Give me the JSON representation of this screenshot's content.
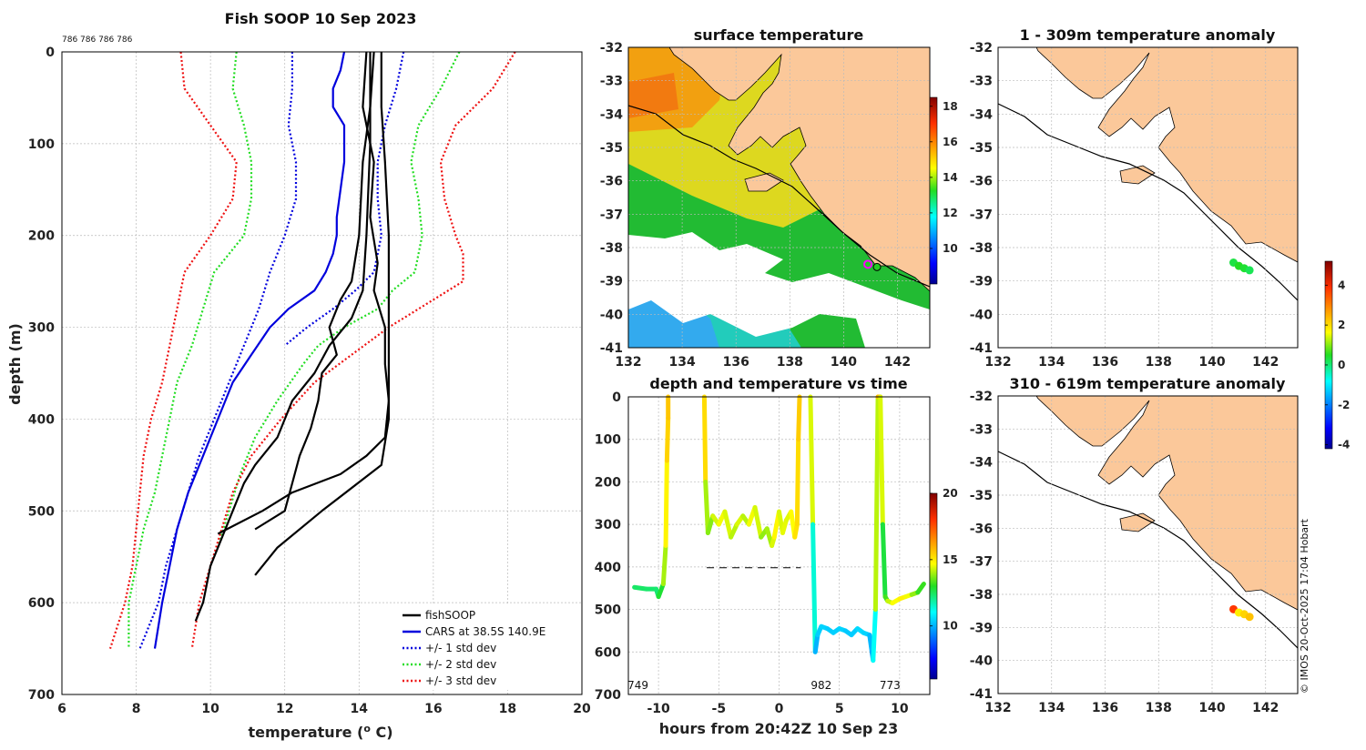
{
  "title": "Fish SOOP 10 Sep 2023",
  "profile_ids_label": "786 786 786 786",
  "copyright": "© IMOS 20-Oct-2025 17:04 Hobart",
  "chart_data": [
    {
      "id": "profile",
      "type": "line",
      "title": "Fish SOOP 10 Sep 2023",
      "xlabel": "temperature (",
      "xlabel_sup": "o",
      "xlabel_end": " C)",
      "ylabel": "depth (m)",
      "xlim": [
        6,
        20
      ],
      "ylim": [
        700,
        0
      ],
      "xticks": [
        6,
        8,
        10,
        12,
        14,
        16,
        18,
        20
      ],
      "yticks": [
        0,
        100,
        200,
        300,
        400,
        500,
        600,
        700
      ],
      "legend": {
        "placement": "bottom-right",
        "entries": [
          "fishSOOP",
          "CARS at 38.5S 140.9E",
          "+/- 1 std dev",
          "+/- 2 std dev",
          "+/- 3 std dev"
        ]
      },
      "series": [
        {
          "name": "CARS at 38.5S 140.9E",
          "color": "#0000dd",
          "style": "solid",
          "depth": [
            0,
            20,
            40,
            60,
            80,
            100,
            120,
            150,
            180,
            200,
            220,
            240,
            260,
            280,
            300,
            330,
            360,
            400,
            440,
            480,
            520,
            560,
            600,
            650
          ],
          "temp": [
            13.6,
            13.5,
            13.3,
            13.3,
            13.6,
            13.6,
            13.6,
            13.5,
            13.4,
            13.4,
            13.3,
            13.1,
            12.8,
            12.1,
            11.6,
            11.1,
            10.6,
            10.2,
            9.8,
            9.4,
            9.1,
            8.9,
            8.7,
            8.5
          ]
        },
        {
          "name": "-1 std dev",
          "color": "#0000dd",
          "style": "dotted",
          "depth": [
            0,
            40,
            80,
            120,
            160,
            200,
            240,
            280,
            320,
            360,
            400,
            440,
            480,
            520,
            560,
            600,
            650
          ],
          "temp": [
            12.2,
            12.2,
            12.1,
            12.3,
            12.3,
            12.0,
            11.6,
            11.3,
            10.9,
            10.5,
            10.1,
            9.7,
            9.4,
            9.1,
            8.8,
            8.6,
            8.1
          ]
        },
        {
          "name": "+1 std dev",
          "color": "#0000dd",
          "style": "dotted",
          "depth": [
            0,
            40,
            80,
            120,
            160,
            200,
            240,
            260,
            280,
            300,
            320
          ],
          "temp": [
            15.2,
            15.0,
            14.7,
            14.5,
            14.5,
            14.6,
            14.4,
            13.9,
            13.3,
            12.6,
            12.0
          ]
        },
        {
          "name": "-2 std dev",
          "color": "#22dd22",
          "style": "dotted",
          "depth": [
            0,
            40,
            80,
            120,
            160,
            200,
            240,
            280,
            320,
            360,
            400,
            440,
            480,
            520,
            560,
            600,
            650
          ],
          "temp": [
            10.7,
            10.6,
            10.9,
            11.1,
            11.1,
            10.9,
            10.1,
            9.8,
            9.5,
            9.1,
            8.9,
            8.7,
            8.5,
            8.2,
            8.0,
            7.8,
            7.8
          ]
        },
        {
          "name": "+2 std dev",
          "color": "#22dd22",
          "style": "dotted",
          "depth": [
            0,
            40,
            80,
            120,
            160,
            200,
            240,
            260,
            280,
            300,
            320,
            340,
            380,
            420,
            460,
            500,
            540
          ],
          "temp": [
            16.7,
            16.2,
            15.6,
            15.4,
            15.6,
            15.7,
            15.5,
            14.9,
            14.5,
            13.6,
            12.9,
            12.5,
            11.8,
            11.2,
            10.8,
            10.5,
            10.2
          ]
        },
        {
          "name": "-3 std dev",
          "color": "#ee1111",
          "style": "dotted",
          "depth": [
            0,
            40,
            80,
            120,
            160,
            200,
            240,
            280,
            320,
            360,
            400,
            440,
            480,
            520,
            560,
            600,
            650
          ],
          "temp": [
            9.2,
            9.3,
            10.0,
            10.7,
            10.6,
            10.0,
            9.3,
            9.1,
            8.9,
            8.7,
            8.4,
            8.2,
            8.1,
            8.0,
            7.9,
            7.7,
            7.3
          ]
        },
        {
          "name": "+3 std dev",
          "color": "#ee1111",
          "style": "dotted",
          "depth": [
            0,
            40,
            80,
            120,
            160,
            200,
            220,
            250,
            270,
            300,
            330,
            360,
            400,
            440,
            480,
            520,
            560,
            600,
            650
          ],
          "temp": [
            18.2,
            17.6,
            16.6,
            16.2,
            16.3,
            16.6,
            16.8,
            16.8,
            16.0,
            14.8,
            13.8,
            12.8,
            11.9,
            11.1,
            10.6,
            10.3,
            10.0,
            9.7,
            9.5
          ]
        },
        {
          "name": "fishSOOP cast A",
          "color": "#000000",
          "style": "solid",
          "depth": [
            0,
            100,
            200,
            260,
            290,
            320,
            350,
            380,
            420,
            450,
            470,
            500,
            530,
            560,
            600,
            620
          ],
          "temp": [
            14.3,
            14.3,
            14.2,
            14.1,
            13.8,
            13.2,
            12.8,
            12.2,
            11.8,
            11.2,
            10.9,
            10.6,
            10.3,
            10.0,
            9.8,
            9.6
          ]
        },
        {
          "name": "fishSOOP cast B",
          "color": "#000000",
          "style": "solid",
          "depth": [
            0,
            60,
            120,
            200,
            260,
            300,
            330,
            360,
            400,
            450,
            500,
            540,
            570
          ],
          "temp": [
            14.6,
            14.6,
            14.7,
            14.8,
            14.8,
            14.8,
            14.8,
            14.8,
            14.8,
            14.6,
            13.0,
            11.8,
            11.2
          ]
        },
        {
          "name": "fishSOOP cast C",
          "color": "#000000",
          "style": "solid",
          "depth": [
            0,
            60,
            120,
            200,
            250,
            270,
            300,
            330,
            350,
            380,
            410,
            440,
            470,
            500,
            520
          ],
          "temp": [
            14.4,
            14.3,
            14.1,
            14.0,
            13.8,
            13.5,
            13.2,
            13.4,
            13.0,
            12.9,
            12.7,
            12.4,
            12.2,
            12.0,
            11.2
          ]
        },
        {
          "name": "fishSOOP cast D",
          "color": "#000000",
          "style": "solid",
          "depth": [
            0,
            60,
            120,
            180,
            230,
            260,
            300,
            340,
            380,
            420,
            440,
            460,
            480,
            500,
            525
          ],
          "temp": [
            14.2,
            14.1,
            14.4,
            14.3,
            14.5,
            14.4,
            14.7,
            14.7,
            14.8,
            14.7,
            14.2,
            13.5,
            12.2,
            11.4,
            10.2
          ]
        }
      ]
    },
    {
      "id": "sst",
      "type": "heatmap",
      "title": "surface temperature",
      "xlim": [
        132,
        143.2
      ],
      "ylim": [
        -41,
        -32
      ],
      "xticks": [
        132,
        134,
        136,
        138,
        140,
        142
      ],
      "yticks": [
        -32,
        -33,
        -34,
        -35,
        -36,
        -37,
        -38,
        -39,
        -40,
        -41
      ],
      "colorbar": {
        "min": 8,
        "max": 18.5,
        "ticks": [
          10,
          12,
          14,
          16,
          18
        ]
      },
      "ship_position": {
        "lon": 140.9,
        "lat": -38.5
      }
    },
    {
      "id": "timeseries",
      "type": "scatter",
      "title": "depth and temperature vs time",
      "xlabel": "hours from 20:42Z 10 Sep 23",
      "xlim": [
        -12.5,
        12.5
      ],
      "ylim": [
        700,
        0
      ],
      "xticks": [
        -10,
        -5,
        0,
        5,
        10
      ],
      "yticks": [
        0,
        100,
        200,
        300,
        400,
        500,
        600,
        700
      ],
      "colorbar": {
        "min": 6,
        "max": 20,
        "ticks": [
          10,
          15,
          20
        ]
      },
      "annotations": [
        {
          "x": -11.7,
          "text": "749"
        },
        {
          "x": 3.5,
          "text": "982"
        },
        {
          "x": 9.2,
          "text": "773"
        }
      ],
      "dashed_line": {
        "x": [
          -6,
          1.8
        ],
        "depth": 402
      },
      "segments": [
        {
          "time": [
            -12.0,
            -11.0,
            -10.2,
            -10.0,
            -9.6,
            -9.4,
            -9.3,
            -9.2,
            -9.2
          ],
          "depth": [
            448,
            452,
            452,
            470,
            440,
            350,
            150,
            50,
            0
          ],
          "temp": [
            12.5,
            12.3,
            12.4,
            12.2,
            13.5,
            14.5,
            15.2,
            15.6,
            15.6
          ]
        },
        {
          "time": [
            -6.2,
            -6.1,
            -5.9,
            -5.5,
            -5.0,
            -4.5,
            -4.0,
            -3.5,
            -3.0,
            -2.5,
            -2.0,
            -1.5,
            -1.0,
            -0.6,
            -0.4,
            0.0,
            0.3,
            0.6,
            1.0,
            1.3,
            1.5,
            1.6,
            1.7
          ],
          "depth": [
            0,
            200,
            320,
            280,
            300,
            270,
            330,
            300,
            280,
            300,
            260,
            330,
            310,
            350,
            330,
            270,
            320,
            290,
            270,
            330,
            300,
            100,
            0
          ],
          "temp": [
            15.5,
            15.0,
            13.0,
            14.5,
            14.2,
            15.0,
            13.8,
            14.5,
            14.3,
            14.0,
            15.2,
            13.5,
            14.2,
            13.8,
            15.0,
            14.6,
            14.2,
            14.8,
            14.1,
            15.3,
            15.0,
            15.5,
            15.5
          ]
        },
        {
          "time": [
            2.6,
            2.8,
            3.0,
            3.2,
            3.5,
            4.0,
            4.5,
            5.0,
            5.5,
            6.0,
            6.5,
            7.0,
            7.5,
            7.7,
            7.8,
            8.0,
            8.2,
            8.4,
            8.6,
            8.8,
            9.0,
            9.4,
            10.0,
            10.5,
            11.0,
            11.5,
            12.0
          ],
          "depth": [
            0,
            300,
            600,
            560,
            540,
            545,
            555,
            545,
            550,
            560,
            545,
            555,
            560,
            600,
            620,
            500,
            0,
            0,
            300,
            470,
            480,
            485,
            475,
            470,
            465,
            460,
            440
          ],
          "temp": [
            15.8,
            13.0,
            9.8,
            10.2,
            10.5,
            10.4,
            10.3,
            10.5,
            10.4,
            10.2,
            10.5,
            10.6,
            10.3,
            9.8,
            9.7,
            12.5,
            15.8,
            15.8,
            13.0,
            12.5,
            14.0,
            14.5,
            14.8,
            15.0,
            14.2,
            13.5,
            12.8
          ]
        }
      ]
    },
    {
      "id": "anom_shallow",
      "type": "scatter",
      "title": "1 - 309m temperature anomaly",
      "xlim": [
        132,
        143.2
      ],
      "ylim": [
        -41,
        -32
      ],
      "xticks": [
        132,
        134,
        136,
        138,
        140,
        142
      ],
      "yticks": [
        -32,
        -33,
        -34,
        -35,
        -36,
        -37,
        -38,
        -39,
        -40,
        -41
      ],
      "points": [
        {
          "lon": 140.8,
          "lat": -38.45,
          "anom": 0.3
        },
        {
          "lon": 141.0,
          "lat": -38.55,
          "anom": 0.5
        },
        {
          "lon": 141.2,
          "lat": -38.62,
          "anom": 0.4
        },
        {
          "lon": 141.4,
          "lat": -38.68,
          "anom": 0.2
        }
      ]
    },
    {
      "id": "anom_deep",
      "type": "scatter",
      "title": "310 - 619m temperature anomaly",
      "xlim": [
        132,
        143.2
      ],
      "ylim": [
        -41,
        -32
      ],
      "xticks": [
        132,
        134,
        136,
        138,
        140,
        142
      ],
      "yticks": [
        -32,
        -33,
        -34,
        -35,
        -36,
        -37,
        -38,
        -39,
        -40,
        -41
      ],
      "colorbar": {
        "min": -4.2,
        "max": 5.2,
        "ticks": [
          -4,
          -2,
          0,
          2,
          4
        ]
      },
      "points": [
        {
          "lon": 140.8,
          "lat": -38.45,
          "anom": 3.8
        },
        {
          "lon": 141.0,
          "lat": -38.55,
          "anom": 1.8
        },
        {
          "lon": 141.2,
          "lat": -38.6,
          "anom": 2.1
        },
        {
          "lon": 141.4,
          "lat": -38.68,
          "anom": 2.3
        }
      ]
    }
  ]
}
